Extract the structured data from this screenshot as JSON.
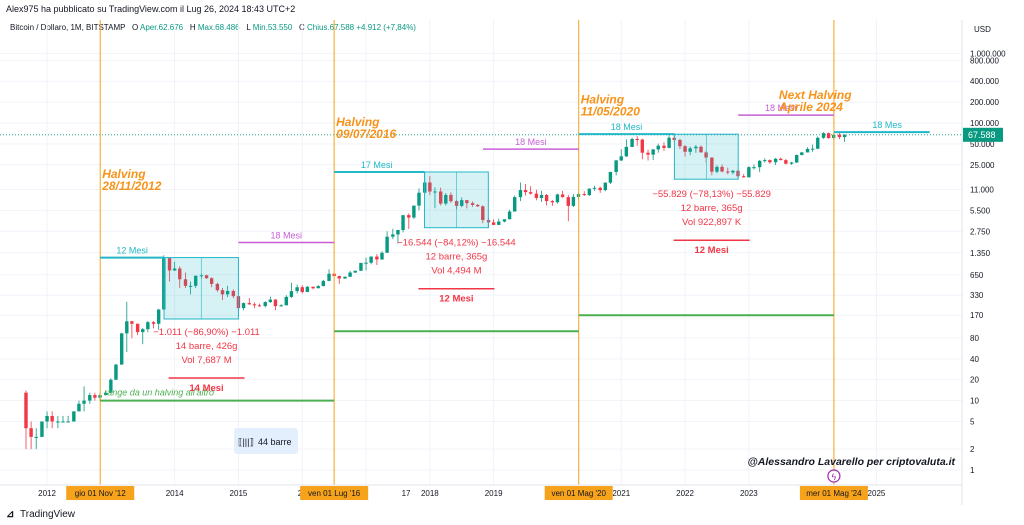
{
  "header": {
    "published": "Alex975 ha pubblicato su TradingView.com il Lug 26, 2024 18:43 UTC+2"
  },
  "symbol_bar": {
    "symbol": "Bitcoin / Dollaro, 1M, BITSTAMP",
    "open_label": "O",
    "open": "Aper.62.676",
    "high_label": "H",
    "high": "Max.68.486",
    "low_label": "L",
    "low": "Min.53.550",
    "close_label": "C",
    "close": "Chius.67.588",
    "change": "+4.912 (+7,84%)"
  },
  "footer": {
    "brand": "TradingView"
  },
  "colors": {
    "bull": "#089981",
    "bear": "#f23645",
    "halving_line": "#f7a21b",
    "halving_text": "#f7931a",
    "teal": "#22b8c8",
    "purple": "#c85fd6",
    "green": "#4caf50",
    "red_text": "#f23645",
    "badge_bg": "#f7a21b"
  },
  "chart_data": {
    "type": "candlestick",
    "title": "",
    "yscale": "log",
    "y_unit": "USD",
    "x_ticks": [
      "2012",
      "2014",
      "2015",
      "20",
      "17",
      "2018",
      "2019",
      "2021",
      "2022",
      "2023",
      "2025"
    ],
    "x_badges": [
      "gio 01 Nov '12",
      "ven 01 Lug '16",
      "ven 01 Mag '20",
      "mer 01 Mag '24"
    ],
    "y_ticks": [
      "1.000.000",
      "800.000",
      "400.000",
      "200.000",
      "100.000",
      "50.000",
      "25.000",
      "11.000",
      "5.500",
      "2.750",
      "1.350",
      "650",
      "330",
      "170",
      "80",
      "40",
      "20",
      "10",
      "5",
      "2",
      "1"
    ],
    "last_price": "67.588",
    "halvings": [
      {
        "date": "2012-11",
        "title": "Halving",
        "subtitle": "28/11/2012"
      },
      {
        "date": "2016-07",
        "title": "Halving",
        "subtitle": "09/07/2016"
      },
      {
        "date": "2020-05",
        "title": "Halving",
        "subtitle": "11/05/2020"
      },
      {
        "date": "2024-04",
        "title": "Next Halving",
        "subtitle": "Aprile 2024"
      }
    ],
    "annotations": {
      "teal": [
        "12 Mesi",
        "17 Mesi",
        "18 Mesi",
        "18 Mes"
      ],
      "purple": [
        "18 Mesi",
        "18 Mesi",
        "18 Mesi",
        "18 Mesi"
      ],
      "boxes": [
        {
          "line1": "−1.011 (−86,90%) −1.011",
          "line2": "14 barre, 426g",
          "line3": "Vol 7,687 M",
          "duration": "14 Mesi"
        },
        {
          "line1": "−16.544 (−84,12%) −16.544",
          "line2": "12 barre, 365g",
          "line3": "Vol 4,494 M",
          "duration": "12 Mesi"
        },
        {
          "line1": "−55.829 (−78,13%) −55.829",
          "line2": "12 barre, 365g",
          "line3": "Vol 922,897 K",
          "duration": "12 Mesi"
        }
      ],
      "range_text": "range da un halving all'altro",
      "bars_label": "44 barre",
      "credit": "@Alessandro Lavarello per criptovaluta.it"
    },
    "candles": [
      [
        2011.67,
        13,
        14,
        2,
        4
      ],
      [
        2011.75,
        4,
        5,
        2,
        3
      ],
      [
        2011.83,
        3,
        4,
        2,
        3
      ],
      [
        2011.92,
        3,
        5,
        3,
        5
      ],
      [
        2012.0,
        5,
        7,
        4,
        6
      ],
      [
        2012.08,
        6,
        7,
        4,
        5
      ],
      [
        2012.17,
        5,
        6,
        4,
        5
      ],
      [
        2012.25,
        5,
        6,
        5,
        5
      ],
      [
        2012.33,
        5,
        6,
        5,
        5
      ],
      [
        2012.42,
        5,
        7,
        5,
        7
      ],
      [
        2012.5,
        7,
        10,
        7,
        9
      ],
      [
        2012.58,
        9,
        16,
        7,
        10
      ],
      [
        2012.67,
        10,
        13,
        9,
        12
      ],
      [
        2012.75,
        12,
        13,
        10,
        11
      ],
      [
        2012.83,
        11,
        13,
        10,
        12
      ],
      [
        2012.92,
        12,
        14,
        12,
        13
      ],
      [
        2013.0,
        13,
        21,
        13,
        20
      ],
      [
        2013.08,
        20,
        34,
        20,
        33
      ],
      [
        2013.17,
        33,
        95,
        33,
        93
      ],
      [
        2013.25,
        93,
        266,
        50,
        139
      ],
      [
        2013.33,
        139,
        140,
        79,
        128
      ],
      [
        2013.42,
        128,
        129,
        88,
        97
      ],
      [
        2013.5,
        97,
        111,
        65,
        107
      ],
      [
        2013.58,
        107,
        140,
        97,
        135
      ],
      [
        2013.67,
        135,
        140,
        110,
        128
      ],
      [
        2013.75,
        128,
        210,
        105,
        205
      ],
      [
        2013.83,
        205,
        1240,
        205,
        1130
      ],
      [
        2013.92,
        1130,
        1160,
        520,
        750
      ],
      [
        2014.0,
        750,
        1000,
        740,
        800
      ],
      [
        2014.08,
        800,
        860,
        420,
        560
      ],
      [
        2014.17,
        560,
        700,
        420,
        450
      ],
      [
        2014.25,
        450,
        520,
        340,
        450
      ],
      [
        2014.33,
        450,
        630,
        420,
        630
      ],
      [
        2014.42,
        630,
        680,
        570,
        640
      ],
      [
        2014.5,
        640,
        650,
        570,
        580
      ],
      [
        2014.58,
        580,
        600,
        430,
        480
      ],
      [
        2014.67,
        480,
        500,
        370,
        390
      ],
      [
        2014.75,
        390,
        420,
        280,
        340
      ],
      [
        2014.83,
        340,
        450,
        310,
        380
      ],
      [
        2014.92,
        380,
        400,
        300,
        320
      ],
      [
        2015.0,
        320,
        330,
        160,
        215
      ],
      [
        2015.08,
        215,
        260,
        200,
        254
      ],
      [
        2015.17,
        254,
        300,
        240,
        244
      ],
      [
        2015.25,
        244,
        260,
        215,
        236
      ],
      [
        2015.33,
        236,
        250,
        225,
        230
      ],
      [
        2015.42,
        230,
        270,
        220,
        263
      ],
      [
        2015.5,
        263,
        315,
        255,
        285
      ],
      [
        2015.58,
        285,
        290,
        200,
        230
      ],
      [
        2015.67,
        230,
        245,
        225,
        236
      ],
      [
        2015.75,
        236,
        330,
        235,
        312
      ],
      [
        2015.83,
        312,
        500,
        300,
        378
      ],
      [
        2015.92,
        378,
        470,
        350,
        430
      ],
      [
        2016.0,
        430,
        460,
        350,
        368
      ],
      [
        2016.08,
        368,
        445,
        365,
        437
      ],
      [
        2016.17,
        437,
        440,
        400,
        416
      ],
      [
        2016.25,
        416,
        460,
        414,
        448
      ],
      [
        2016.33,
        448,
        550,
        440,
        531
      ],
      [
        2016.42,
        531,
        780,
        525,
        673
      ],
      [
        2016.5,
        673,
        700,
        600,
        624
      ],
      [
        2016.58,
        624,
        630,
        480,
        575
      ],
      [
        2016.67,
        575,
        615,
        565,
        609
      ],
      [
        2016.75,
        609,
        740,
        605,
        700
      ],
      [
        2016.83,
        700,
        750,
        690,
        742
      ],
      [
        2016.92,
        742,
        970,
        740,
        963
      ],
      [
        2017.0,
        963,
        1150,
        750,
        970
      ],
      [
        2017.08,
        970,
        1200,
        920,
        1190
      ],
      [
        2017.17,
        1190,
        1290,
        900,
        1080
      ],
      [
        2017.25,
        1080,
        1420,
        1070,
        1350
      ],
      [
        2017.33,
        1350,
        2760,
        1350,
        2300
      ],
      [
        2017.42,
        2300,
        3000,
        2120,
        2480
      ],
      [
        2017.5,
        2480,
        2900,
        1830,
        2870
      ],
      [
        2017.58,
        2870,
        4480,
        2650,
        4700
      ],
      [
        2017.67,
        4700,
        4980,
        2970,
        4340
      ],
      [
        2017.75,
        4340,
        6470,
        4150,
        6450
      ],
      [
        2017.83,
        6450,
        11400,
        5500,
        9900
      ],
      [
        2017.92,
        9900,
        19700,
        9600,
        13900
      ],
      [
        2018.0,
        13900,
        17200,
        9200,
        10300
      ],
      [
        2018.08,
        10300,
        11800,
        5900,
        10300
      ],
      [
        2018.17,
        10300,
        11700,
        6500,
        6900
      ],
      [
        2018.25,
        6900,
        9800,
        6500,
        9200
      ],
      [
        2018.33,
        9200,
        9990,
        7050,
        7490
      ],
      [
        2018.42,
        7490,
        7770,
        5750,
        6400
      ],
      [
        2018.5,
        6400,
        8500,
        6100,
        7740
      ],
      [
        2018.58,
        7740,
        7760,
        5880,
        7000
      ],
      [
        2018.67,
        7000,
        7400,
        6200,
        6600
      ],
      [
        2018.75,
        6600,
        6800,
        6200,
        6300
      ],
      [
        2018.83,
        6300,
        6500,
        3600,
        4000
      ],
      [
        2018.92,
        4000,
        4300,
        3100,
        3700
      ],
      [
        2019.0,
        3700,
        4100,
        3400,
        3400
      ],
      [
        2019.08,
        3400,
        4200,
        3400,
        3800
      ],
      [
        2019.17,
        3800,
        4100,
        3700,
        4100
      ],
      [
        2019.25,
        4100,
        5600,
        4100,
        5300
      ],
      [
        2019.33,
        5300,
        9000,
        5300,
        8550
      ],
      [
        2019.42,
        8550,
        13900,
        7500,
        10800
      ],
      [
        2019.5,
        10800,
        13200,
        9000,
        10100
      ],
      [
        2019.58,
        10100,
        12300,
        9300,
        9600
      ],
      [
        2019.67,
        9600,
        10900,
        7700,
        8300
      ],
      [
        2019.75,
        8300,
        10500,
        7300,
        9150
      ],
      [
        2019.83,
        9150,
        9500,
        6500,
        7500
      ],
      [
        2019.92,
        7500,
        7750,
        6400,
        7200
      ],
      [
        2020.0,
        7200,
        9550,
        6900,
        9350
      ],
      [
        2020.08,
        9350,
        10500,
        8400,
        8550
      ],
      [
        2020.17,
        8550,
        9200,
        3850,
        6400
      ],
      [
        2020.25,
        6400,
        9450,
        6150,
        8630
      ],
      [
        2020.33,
        8630,
        10000,
        8100,
        9450
      ],
      [
        2020.42,
        9450,
        10400,
        8900,
        9140
      ],
      [
        2020.5,
        9140,
        11400,
        8900,
        11330
      ],
      [
        2020.58,
        11330,
        12470,
        10550,
        11650
      ],
      [
        2020.67,
        11650,
        12100,
        9850,
        10780
      ],
      [
        2020.75,
        10780,
        14000,
        10400,
        13800
      ],
      [
        2020.83,
        13800,
        19850,
        13200,
        19700
      ],
      [
        2020.92,
        19700,
        29300,
        17600,
        28900
      ],
      [
        2021.0,
        28900,
        41900,
        28200,
        33100
      ],
      [
        2021.08,
        33100,
        58300,
        32300,
        45200
      ],
      [
        2021.17,
        45200,
        61700,
        45000,
        58800
      ],
      [
        2021.25,
        58800,
        64800,
        47000,
        57700
      ],
      [
        2021.33,
        57700,
        59500,
        30000,
        37300
      ],
      [
        2021.42,
        37300,
        41300,
        28800,
        35000
      ],
      [
        2021.5,
        35000,
        42300,
        29300,
        41600
      ],
      [
        2021.58,
        41600,
        50500,
        37300,
        47100
      ],
      [
        2021.67,
        47100,
        52900,
        39600,
        43800
      ],
      [
        2021.75,
        43800,
        66900,
        43300,
        61300
      ],
      [
        2021.83,
        61300,
        69000,
        53500,
        57000
      ],
      [
        2021.92,
        57000,
        59100,
        42000,
        46300
      ],
      [
        2022.0,
        46300,
        47900,
        32900,
        38500
      ],
      [
        2022.08,
        38500,
        45800,
        34300,
        43200
      ],
      [
        2022.17,
        43200,
        48200,
        37200,
        45500
      ],
      [
        2022.25,
        45500,
        47400,
        37600,
        37700
      ],
      [
        2022.33,
        37700,
        40000,
        26700,
        31800
      ],
      [
        2022.42,
        31800,
        31900,
        17600,
        19900
      ],
      [
        2022.5,
        19900,
        24600,
        18900,
        23300
      ],
      [
        2022.58,
        23300,
        25200,
        19500,
        20000
      ],
      [
        2022.67,
        20000,
        22800,
        18200,
        19400
      ],
      [
        2022.75,
        19400,
        21100,
        18200,
        20500
      ],
      [
        2022.83,
        20500,
        21400,
        15500,
        17100
      ],
      [
        2022.92,
        17100,
        18400,
        16300,
        16500
      ],
      [
        2023.0,
        16500,
        23900,
        16500,
        23100
      ],
      [
        2023.08,
        23100,
        25200,
        21400,
        23100
      ],
      [
        2023.17,
        23100,
        29200,
        19600,
        28500
      ],
      [
        2023.25,
        28500,
        31000,
        26900,
        29200
      ],
      [
        2023.33,
        29200,
        29800,
        25800,
        27200
      ],
      [
        2023.42,
        27200,
        31400,
        24800,
        30500
      ],
      [
        2023.5,
        30500,
        31800,
        28900,
        29200
      ],
      [
        2023.58,
        29200,
        30200,
        25300,
        25900
      ],
      [
        2023.67,
        25900,
        27500,
        24900,
        27000
      ],
      [
        2023.75,
        27000,
        35100,
        26500,
        34600
      ],
      [
        2023.83,
        34600,
        38400,
        34100,
        37700
      ],
      [
        2023.92,
        37700,
        44700,
        37600,
        42300
      ],
      [
        2024.0,
        42300,
        48900,
        38500,
        42600
      ],
      [
        2024.08,
        42600,
        64000,
        41900,
        61200
      ],
      [
        2024.17,
        61200,
        73800,
        59000,
        71300
      ],
      [
        2024.25,
        71300,
        72700,
        59600,
        60700
      ],
      [
        2024.33,
        60700,
        71900,
        56500,
        67500
      ],
      [
        2024.42,
        67500,
        71900,
        58400,
        62700
      ],
      [
        2024.5,
        62700,
        68500,
        53550,
        67588
      ]
    ]
  }
}
